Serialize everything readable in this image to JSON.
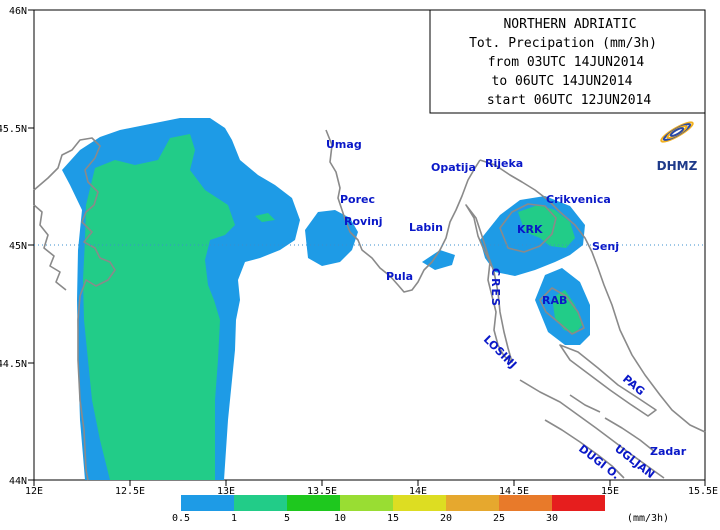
{
  "title_box": {
    "lines": [
      "NORTHERN ADRIATIC",
      "Tot. Precipation (mm/3h)",
      "from 03UTC 14JUN2014",
      "to 06UTC 14JUN2014",
      "start 06UTC 12JUN2014"
    ]
  },
  "logo": {
    "text": "DHMZ"
  },
  "axes": {
    "lon_labels": [
      "12E",
      "12.5E",
      "13E",
      "13.5E",
      "14E",
      "14.5E",
      "15E",
      "15.5E"
    ],
    "lat_labels": [
      "46N",
      "45.5N",
      "45N",
      "44.5N",
      "44N"
    ],
    "lon_range": [
      12.0,
      15.5
    ],
    "lat_range": [
      44.0,
      46.0
    ]
  },
  "places": [
    {
      "name": "Umag"
    },
    {
      "name": "Porec"
    },
    {
      "name": "Rovinj"
    },
    {
      "name": "Pula"
    },
    {
      "name": "Labin"
    },
    {
      "name": "Opatija"
    },
    {
      "name": "Rijeka"
    },
    {
      "name": "Crikvenica"
    },
    {
      "name": "KRK"
    },
    {
      "name": "Senj"
    },
    {
      "name": "CRES"
    },
    {
      "name": "RAB"
    },
    {
      "name": "LOSINJ"
    },
    {
      "name": "PAG"
    },
    {
      "name": "Zadar"
    },
    {
      "name": "UGLJAN"
    },
    {
      "name": "DUGI O."
    }
  ],
  "legend": {
    "unit": "(mm/3h)",
    "thresholds": [
      "0.5",
      "1",
      "5",
      "10",
      "15",
      "20",
      "25",
      "30"
    ],
    "colors": [
      "#1e9be6",
      "#22cc88",
      "#1ec81e",
      "#99dd33",
      "#dddd22",
      "#e6a82e",
      "#e87a2a",
      "#e61e1e"
    ]
  },
  "colors": {
    "coast": "#8a8a8a",
    "rain_light": "#1e9be6",
    "rain_moderate": "#22cc88",
    "gridline": "#3a8fcf"
  }
}
